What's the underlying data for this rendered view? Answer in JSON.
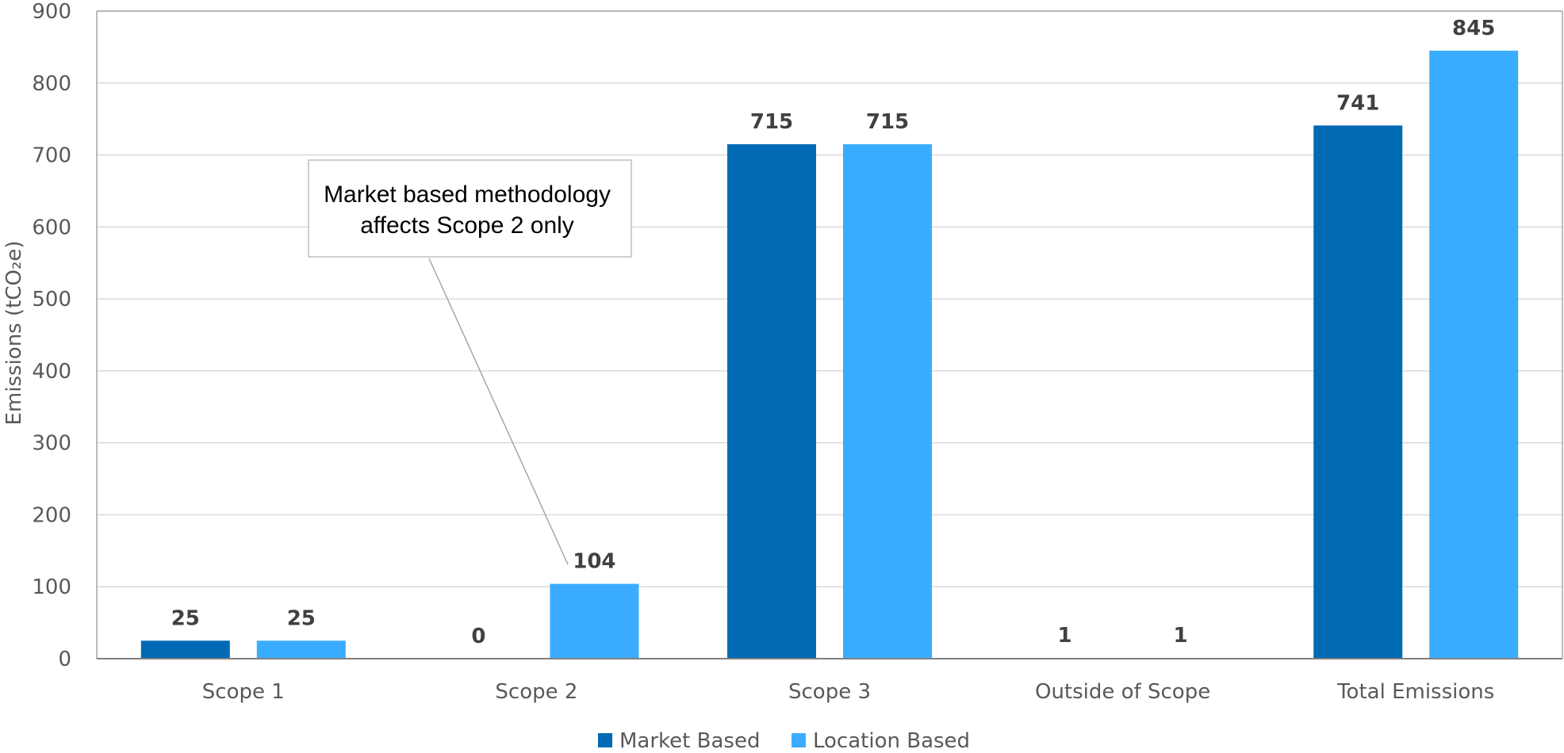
{
  "chart_data": {
    "type": "bar",
    "categories": [
      "Scope 1",
      "Scope 2",
      "Scope 3",
      "Outside of Scope",
      "Total Emissions"
    ],
    "series": [
      {
        "name": "Market Based",
        "values": [
          25,
          0,
          715,
          1,
          741
        ],
        "color": "#006AB5"
      },
      {
        "name": "Location Based",
        "values": [
          25,
          104,
          715,
          1,
          845
        ],
        "color": "#3AACFF"
      }
    ],
    "title": "",
    "xlabel": "",
    "ylabel": "Emissions (tCO₂e)",
    "ylim": [
      0,
      900
    ],
    "yticks": [
      0,
      100,
      200,
      300,
      400,
      500,
      600,
      700,
      800,
      900
    ],
    "grid": true,
    "legend_position": "bottom-center",
    "annotation": {
      "lines": [
        "Market based methodology",
        "affects Scope 2 only"
      ],
      "target_category": "Scope 2",
      "target_series": "Location Based"
    }
  }
}
